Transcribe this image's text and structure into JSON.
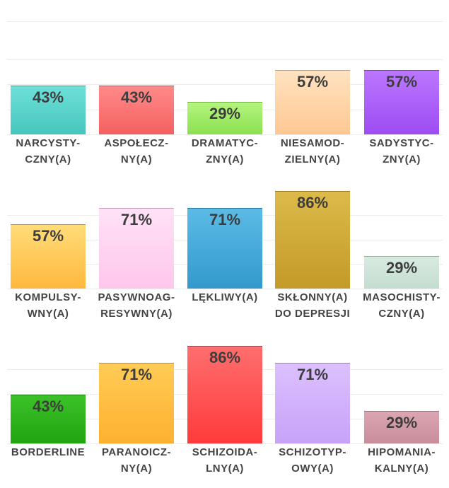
{
  "chart_data": [
    {
      "type": "bar",
      "ylim": [
        0,
        100
      ],
      "grid": true,
      "categories": [
        {
          "line1": "NARCYSTY-",
          "line2": "CZNY(A)"
        },
        {
          "line1": "ASPOŁECZ-",
          "line2": "NY(A)"
        },
        {
          "line1": "DRAMATYC-",
          "line2": "ZNY(A)"
        },
        {
          "line1": "NIESAMOD-",
          "line2": "ZIELNY(A)"
        },
        {
          "line1": "SADYSTYC-",
          "line2": "ZNY(A)"
        }
      ],
      "values": [
        43,
        43,
        29,
        57,
        57
      ],
      "value_labels": [
        "43%",
        "43%",
        "29%",
        "57%",
        "57%"
      ],
      "colors": [
        [
          "#6ee0d8",
          "#45c6bd"
        ],
        [
          "#ff8a8a",
          "#f56060"
        ],
        [
          "#b4f57e",
          "#8ce050"
        ],
        [
          "#ffe2c0",
          "#ffc892"
        ],
        [
          "#bb77ff",
          "#9d4cf2"
        ]
      ]
    },
    {
      "type": "bar",
      "ylim": [
        0,
        100
      ],
      "grid": true,
      "categories": [
        {
          "line1": "KOMPULSY-",
          "line2": "WNY(A)"
        },
        {
          "line1": "PASYWNOAG-",
          "line2": "RESYWNY(A)"
        },
        {
          "line1": "LĘKLIWY(A)",
          "line2": ""
        },
        {
          "line1": "SKŁONNY(A)",
          "line2": "DO DEPRESJI"
        },
        {
          "line1": "MASOCHISTY-",
          "line2": "CZNY(A)"
        }
      ],
      "values": [
        57,
        71,
        71,
        86,
        29
      ],
      "value_labels": [
        "57%",
        "71%",
        "71%",
        "86%",
        "29%"
      ],
      "colors": [
        [
          "#ffdc7a",
          "#ffb83c"
        ],
        [
          "#ffe2f6",
          "#ffc6ec"
        ],
        [
          "#5bbbe6",
          "#3399cc"
        ],
        [
          "#dcba4a",
          "#c49a28"
        ],
        [
          "#d8ebe0",
          "#c4ddd0"
        ]
      ]
    },
    {
      "type": "bar",
      "ylim": [
        0,
        100
      ],
      "grid": true,
      "categories": [
        {
          "line1": "BORDERLINE",
          "line2": ""
        },
        {
          "line1": "PARANOICZ-",
          "line2": "NY(A)"
        },
        {
          "line1": "SCHIZOIDA-",
          "line2": "LNY(A)"
        },
        {
          "line1": "SCHIZOTYP-",
          "line2": "OWY(A)"
        },
        {
          "line1": "HIPOMANIA-",
          "line2": "KALNY(A)"
        }
      ],
      "values": [
        43,
        71,
        86,
        71,
        29
      ],
      "value_labels": [
        "43%",
        "71%",
        "86%",
        "71%",
        "29%"
      ],
      "colors": [
        [
          "#3cc228",
          "#20a412"
        ],
        [
          "#ffcc55",
          "#ffb030"
        ],
        [
          "#ff6e6e",
          "#ff3a3a"
        ],
        [
          "#dcc0ff",
          "#c8a2f8"
        ],
        [
          "#dba6b2",
          "#c98c9a"
        ]
      ]
    }
  ]
}
